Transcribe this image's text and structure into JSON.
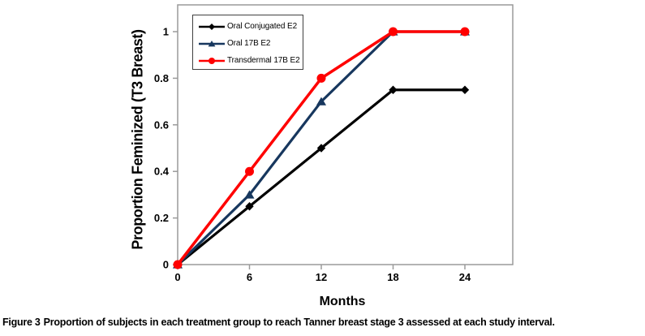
{
  "figure": {
    "caption_label": "Figure 3",
    "caption_text": "Proportion of subjects in each treatment group to reach Tanner breast stage 3 assessed at each study interval."
  },
  "chart_data": {
    "type": "line",
    "title": "",
    "xlabel": "Months",
    "ylabel": "Proportion Feminized (T3 Breast)",
    "x": [
      0,
      6,
      12,
      18,
      24
    ],
    "x_tick_labels": [
      "0",
      "6",
      "12",
      "18",
      "24"
    ],
    "y_ticks": [
      0,
      0.2,
      0.4,
      0.6,
      0.8,
      1
    ],
    "y_tick_labels": [
      "0",
      "0.2",
      "0.4",
      "0.6",
      "0.8",
      "1"
    ],
    "xlim": [
      0,
      28
    ],
    "ylim": [
      0,
      1.115
    ],
    "grid": false,
    "legend_position": "top-left-inside",
    "axis_color": "#9a9a9a",
    "series": [
      {
        "name": "Oral Conjugated E2",
        "color": "#000000",
        "marker": "diamond",
        "values": [
          0,
          0.25,
          0.5,
          0.75,
          0.75
        ]
      },
      {
        "name": "Oral 17B E2",
        "color": "#17375E",
        "marker": "triangle",
        "values": [
          0,
          0.3,
          0.7,
          1.0,
          1.0
        ]
      },
      {
        "name": "Transdermal 17B E2",
        "color": "#FF0000",
        "marker": "circle",
        "values": [
          0,
          0.4,
          0.8,
          1.0,
          1.0
        ]
      }
    ]
  }
}
